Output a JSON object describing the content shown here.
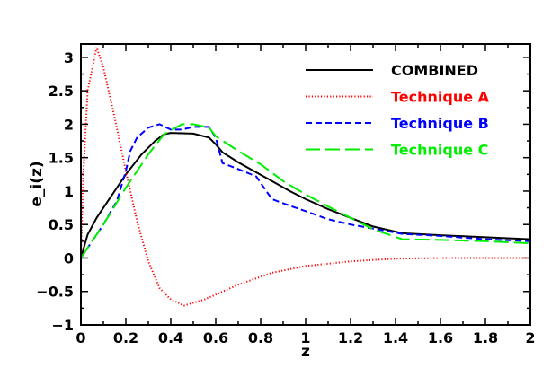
{
  "chart_data": {
    "type": "line",
    "title": "",
    "xlabel": "z",
    "ylabel": "e_i(z)",
    "xlim": [
      0,
      2
    ],
    "ylim": [
      -1,
      3.2
    ],
    "xticks": [
      "0",
      "0.2",
      "0.4",
      "0.6",
      "0.8",
      "1",
      "1.2",
      "1.4",
      "1.6",
      "1.8",
      "2"
    ],
    "xtick_values": [
      0,
      0.2,
      0.4,
      0.6,
      0.8,
      1,
      1.2,
      1.4,
      1.6,
      1.8,
      2
    ],
    "yticks": [
      "−1",
      "−0.5",
      "0",
      "0.5",
      "1",
      "1.5",
      "2",
      "2.5",
      "3"
    ],
    "ytick_values": [
      -1,
      -0.5,
      0,
      0.5,
      1,
      1.5,
      2,
      2.5,
      3
    ],
    "grid": false,
    "legend_position": "top-right",
    "series": [
      {
        "name": "COMBINED",
        "color": "#000000",
        "dash": "solid",
        "x": [
          0,
          0.03,
          0.07,
          0.1,
          0.15,
          0.2,
          0.27,
          0.33,
          0.37,
          0.4,
          0.5,
          0.57,
          0.6,
          0.63,
          0.7,
          0.77,
          0.85,
          0.93,
          1,
          1.1,
          1.2,
          1.3,
          1.43,
          1.6,
          1.8,
          2
        ],
        "y": [
          0,
          0.35,
          0.6,
          0.75,
          1.0,
          1.25,
          1.55,
          1.75,
          1.85,
          1.87,
          1.86,
          1.8,
          1.7,
          1.58,
          1.43,
          1.3,
          1.15,
          1.0,
          0.88,
          0.73,
          0.6,
          0.47,
          0.37,
          0.34,
          0.31,
          0.28
        ]
      },
      {
        "name": "Technique A",
        "color": "#ff0000",
        "dash": "dotted",
        "x": [
          0,
          0.01,
          0.03,
          0.07,
          0.1,
          0.15,
          0.2,
          0.25,
          0.3,
          0.35,
          0.4,
          0.46,
          0.55,
          0.7,
          0.85,
          1,
          1.2,
          1.4,
          1.6,
          2
        ],
        "y": [
          0,
          1.2,
          2.5,
          3.15,
          2.85,
          2.1,
          1.3,
          0.55,
          -0.05,
          -0.45,
          -0.62,
          -0.71,
          -0.62,
          -0.4,
          -0.22,
          -0.12,
          -0.05,
          -0.01,
          0,
          0
        ]
      },
      {
        "name": "Technique B",
        "color": "#0000ff",
        "dash": "short-dash",
        "x": [
          0,
          0.07,
          0.1,
          0.16,
          0.2,
          0.22,
          0.25,
          0.3,
          0.35,
          0.4,
          0.45,
          0.5,
          0.57,
          0.6,
          0.63,
          0.7,
          0.78,
          0.85,
          0.93,
          1,
          1.1,
          1.2,
          1.3,
          1.43,
          1.6,
          1.8,
          2
        ],
        "y": [
          0,
          0.35,
          0.5,
          0.85,
          1.3,
          1.6,
          1.8,
          1.95,
          2.0,
          1.92,
          1.92,
          1.96,
          1.96,
          1.8,
          1.42,
          1.33,
          1.22,
          0.88,
          0.78,
          0.7,
          0.58,
          0.5,
          0.44,
          0.36,
          0.33,
          0.28,
          0.25
        ]
      },
      {
        "name": "Technique C",
        "color": "#00ee00",
        "dash": "long-dash",
        "x": [
          0,
          0.1,
          0.2,
          0.3,
          0.37,
          0.45,
          0.5,
          0.57,
          0.6,
          0.7,
          0.8,
          0.9,
          1,
          1.1,
          1.2,
          1.3,
          1.43,
          1.6,
          1.8,
          2
        ],
        "y": [
          0,
          0.5,
          1.05,
          1.55,
          1.85,
          2.0,
          2.0,
          1.95,
          1.82,
          1.6,
          1.4,
          1.15,
          0.95,
          0.77,
          0.6,
          0.43,
          0.28,
          0.27,
          0.25,
          0.22
        ]
      }
    ]
  }
}
